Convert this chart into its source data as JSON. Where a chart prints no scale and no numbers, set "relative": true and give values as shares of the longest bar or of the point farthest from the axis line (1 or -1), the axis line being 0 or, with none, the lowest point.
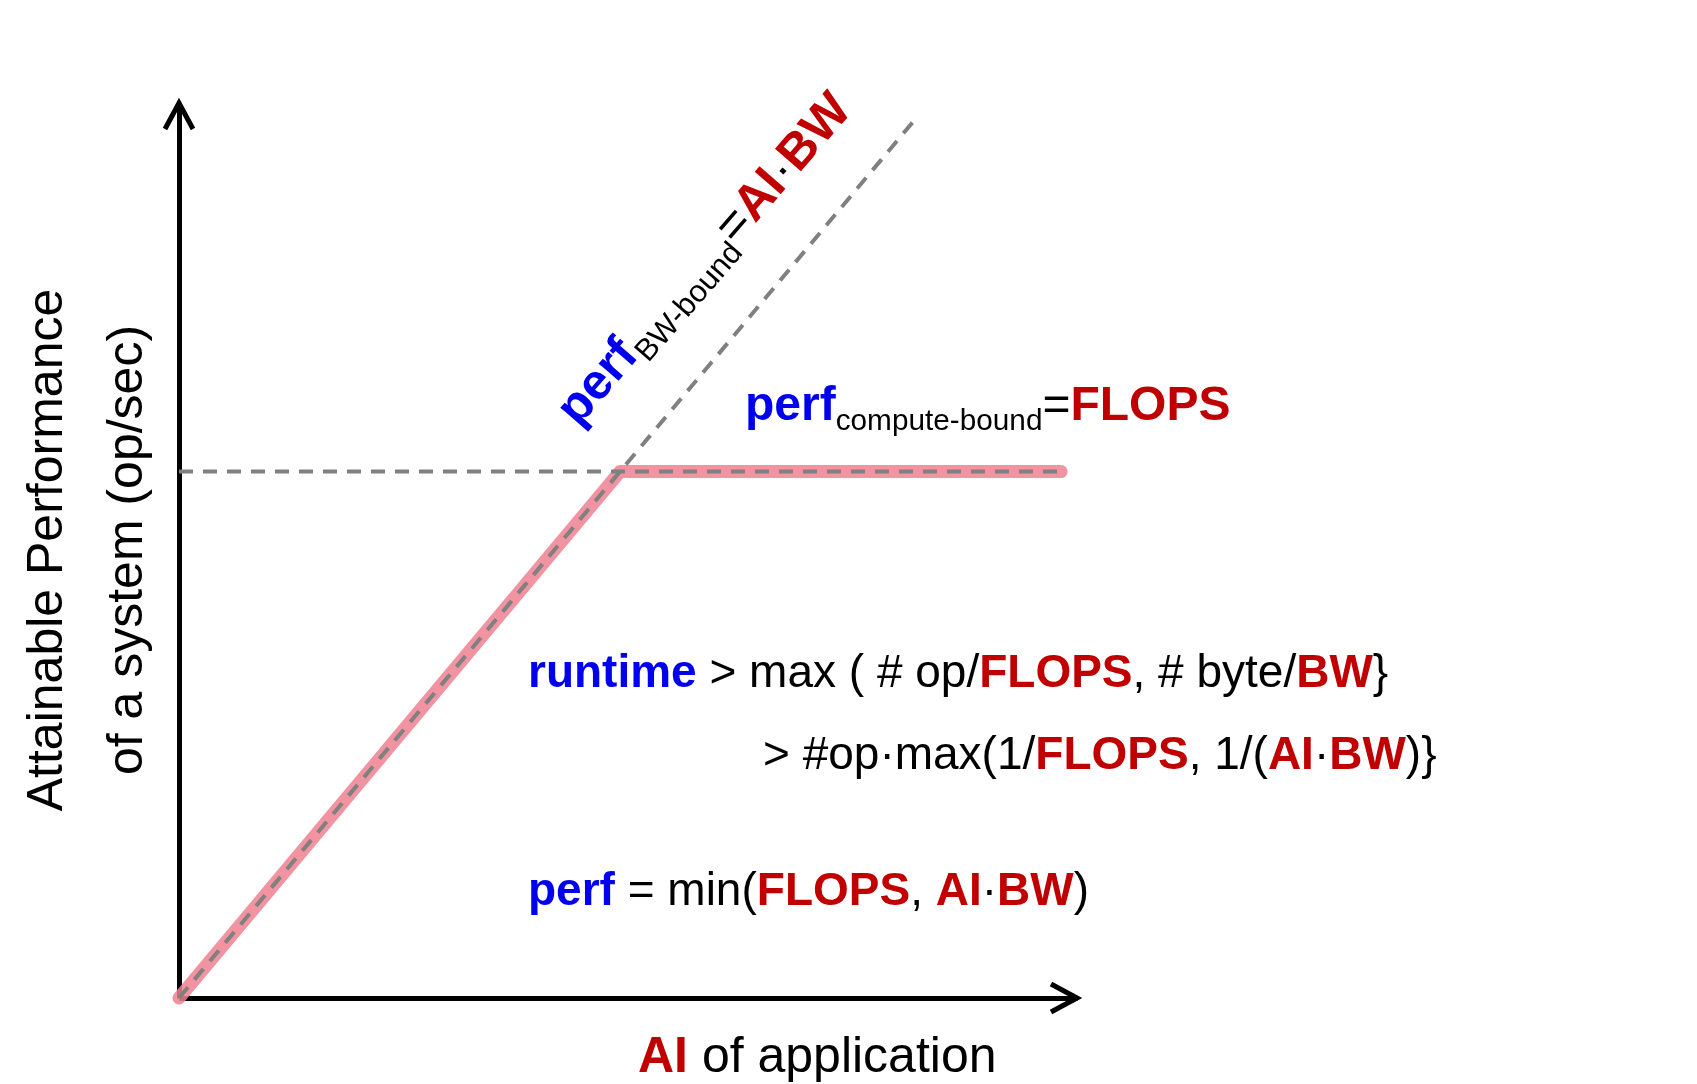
{
  "chart_data": {
    "type": "line",
    "relative": true,
    "xlabel": "AI of application",
    "ylabel": "Attainable Performance\nof a system (op/sec)",
    "marker": "none",
    "grid": false,
    "categories": [
      null,
      null,
      null,
      null,
      null,
      null,
      null,
      null,
      null,
      null,
      null,
      null,
      null
    ],
    "series": [
      {
        "color": "#f08090",
        "line_style": "solid",
        "values": [
          0,
          0.1,
          0.2,
          0.3,
          0.4,
          0.5,
          0.6,
          0.6,
          0.6,
          0.6,
          0.6,
          0.6,
          0.6
        ]
      },
      {
        "color": "#808080",
        "line_style": "dashed",
        "values": [
          0,
          0.1,
          0.2,
          0.3,
          0.4,
          0.5,
          0.6,
          0.7,
          0.8,
          0.9,
          1,
          null,
          null
        ]
      },
      {
        "color": "#808080",
        "line_style": "dashed",
        "values": [
          0.6,
          0.6,
          0.6,
          0.6,
          0.6,
          0.6,
          0.6,
          0.6,
          0.6,
          0.6,
          0.6,
          0.6,
          0.6
        ]
      }
    ],
    "annotations": [
      "perf$_{BW-bound}$=AI·BW",
      "perf$_{compute-bound}$=FLOPS",
      "runtime > max ( # op/FLOPS, # byte/BW}",
      "> #op·max(1/FLOPS, 1/(AI·BW)}",
      "perf = min(FLOPS, AI·BW)"
    ]
  }
}
